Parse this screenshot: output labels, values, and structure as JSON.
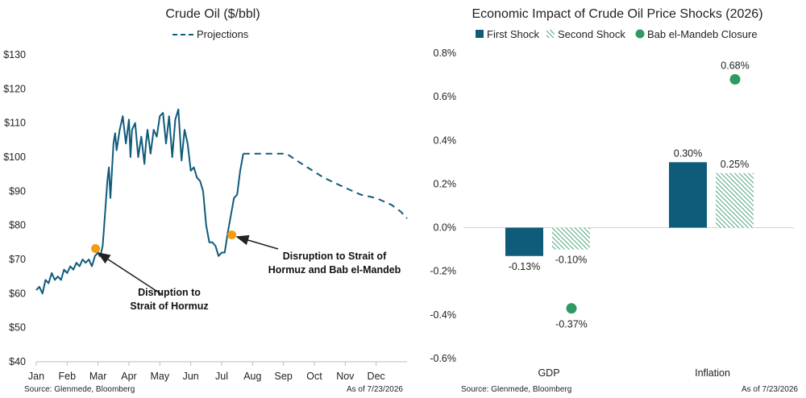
{
  "left_chart": {
    "title": "Crude Oil ($/bbl)",
    "legend_projection": "Projections",
    "source": "Source: Glenmede, Bloomberg",
    "asof": "As of 7/23/2026",
    "annotation1_line1": "Disruption to",
    "annotation1_line2": "Strait of Hormuz",
    "annotation2_line1": "Disruption to Strait of",
    "annotation2_line2": "Hormuz and Bab el-Mandeb"
  },
  "right_chart": {
    "title": "Economic Impact of Crude Oil Price Shocks (2026)",
    "source": "Source: Glenmede, Bloomberg",
    "asof": "As of 7/23/2026"
  },
  "colors": {
    "navy": "#0e5b7a",
    "green": "#2e9a63",
    "hatch": "#3a9d6b",
    "marker": "#f39c12"
  },
  "chart_data": [
    {
      "type": "line",
      "title": "Crude Oil ($/bbl)",
      "ylim": [
        40,
        130
      ],
      "yticks": [
        40,
        50,
        60,
        70,
        80,
        90,
        100,
        110,
        120,
        130
      ],
      "ytick_labels": [
        "$40",
        "$50",
        "$60",
        "$70",
        "$80",
        "$90",
        "$100",
        "$110",
        "$120",
        "$130"
      ],
      "xlim": [
        0,
        12
      ],
      "month_labels": [
        "Jan",
        "Feb",
        "Mar",
        "Apr",
        "May",
        "Jun",
        "Jul",
        "Aug",
        "Sep",
        "Oct",
        "Nov",
        "Dec"
      ],
      "actual_x": [
        0.0,
        0.1,
        0.2,
        0.3,
        0.4,
        0.5,
        0.6,
        0.7,
        0.8,
        0.9,
        1.0,
        1.1,
        1.2,
        1.3,
        1.4,
        1.5,
        1.6,
        1.7,
        1.8,
        1.9,
        2.0,
        2.05,
        2.1,
        2.15,
        2.2,
        2.3,
        2.35,
        2.4,
        2.5,
        2.55,
        2.6,
        2.7,
        2.8,
        2.9,
        3.0,
        3.05,
        3.1,
        3.2,
        3.3,
        3.4,
        3.5,
        3.55,
        3.6,
        3.7,
        3.8,
        3.9,
        4.0,
        4.1,
        4.2,
        4.3,
        4.4,
        4.5,
        4.6,
        4.7,
        4.8,
        4.9,
        5.0,
        5.1,
        5.2,
        5.3,
        5.4,
        5.5,
        5.6,
        5.7,
        5.8,
        5.9,
        6.0,
        6.1,
        6.2,
        6.3,
        6.4,
        6.5,
        6.6,
        6.7
      ],
      "actual_y": [
        61,
        62,
        60,
        64,
        63,
        66,
        64,
        65,
        64,
        67,
        66,
        68,
        67,
        69,
        68,
        70,
        69,
        70,
        68,
        71,
        72,
        71,
        72,
        74,
        80,
        93,
        97,
        88,
        104,
        107,
        102,
        108,
        112,
        104,
        111,
        100,
        108,
        110,
        100,
        106,
        98,
        104,
        108,
        101,
        108,
        106,
        112,
        113,
        104,
        112,
        100,
        111,
        114,
        99,
        108,
        104,
        96,
        97,
        94,
        93,
        90,
        80,
        75,
        75,
        74,
        71,
        72,
        72,
        78,
        83,
        88,
        89,
        96,
        101
      ],
      "projection_x": [
        6.7,
        7.5,
        8.1,
        8.6,
        9.3,
        10.0,
        10.5,
        11.0,
        11.5,
        11.8,
        12.0
      ],
      "projection_y": [
        101,
        101,
        101,
        98,
        94,
        91,
        89,
        88,
        86,
        84,
        82
      ],
      "markers": [
        {
          "x": 1.92,
          "y": 73.2
        },
        {
          "x": 6.33,
          "y": 77.2
        }
      ],
      "series": [
        {
          "name": "",
          "kind": "actual"
        },
        {
          "name": "Projections",
          "kind": "projection"
        }
      ]
    },
    {
      "type": "bar",
      "title": "Economic Impact of Crude Oil Price Shocks (2026)",
      "categories": [
        "GDP",
        "Inflation"
      ],
      "ylim": [
        -0.6,
        0.8
      ],
      "yticks": [
        -0.6,
        -0.4,
        -0.2,
        0.0,
        0.2,
        0.4,
        0.6,
        0.8
      ],
      "ytick_labels": [
        "-0.6%",
        "-0.4%",
        "-0.2%",
        "0.0%",
        "0.2%",
        "0.4%",
        "0.6%",
        "0.8%"
      ],
      "series": [
        {
          "name": "First Shock",
          "kind": "bar",
          "values": [
            -0.13,
            0.3
          ],
          "labels": [
            "-0.13%",
            "0.30%"
          ]
        },
        {
          "name": "Second Shock",
          "kind": "bar-hatched",
          "values": [
            -0.1,
            0.25
          ],
          "labels": [
            "-0.10%",
            "0.25%"
          ]
        },
        {
          "name": "Bab el-Mandeb Closure",
          "kind": "point",
          "values": [
            -0.37,
            0.68
          ],
          "labels": [
            "-0.37%",
            "0.68%"
          ]
        }
      ]
    }
  ]
}
